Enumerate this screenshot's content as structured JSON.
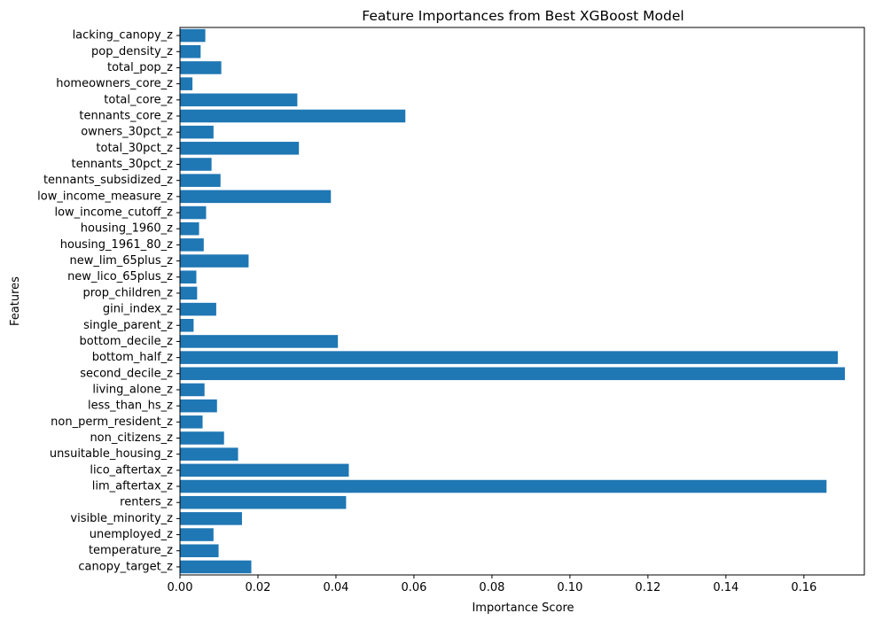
{
  "chart_data": {
    "type": "bar",
    "orientation": "horizontal",
    "title": "Feature Importances from Best XGBoost Model",
    "xlabel": "Importance Score",
    "ylabel": "Features",
    "xlim": [
      0,
      0.1755
    ],
    "xticks": [
      0.0,
      0.02,
      0.04,
      0.06,
      0.08,
      0.1,
      0.12,
      0.14,
      0.16
    ],
    "xtick_labels": [
      "0.00",
      "0.02",
      "0.04",
      "0.06",
      "0.08",
      "0.10",
      "0.12",
      "0.14",
      "0.16"
    ],
    "grid": false,
    "bar_color": "#1f77b4",
    "categories": [
      "lacking_canopy_z",
      "pop_density_z",
      "total_pop_z",
      "homeowners_core_z",
      "total_core_z",
      "tennants_core_z",
      "owners_30pct_z",
      "total_30pct_z",
      "tennants_30pct_z",
      "tennants_subsidized_z",
      "low_income_measure_z",
      "low_income_cutoff_z",
      "housing_1960_z",
      "housing_1961_80_z",
      "new_lim_65plus_z",
      "new_lico_65plus_z",
      "prop_children_z",
      "gini_index_z",
      "single_parent_z",
      "bottom_decile_z",
      "bottom_half_z",
      "second_decile_z",
      "living_alone_z",
      "less_than_hs_z",
      "non_perm_resident_z",
      "non_citizens_z",
      "unsuitable_housing_z",
      "lico_aftertax_z",
      "lim_aftertax_z",
      "renters_z",
      "visible_minority_z",
      "unemployed_z",
      "temperature_z",
      "canopy_target_z"
    ],
    "values": [
      0.0065,
      0.0053,
      0.0106,
      0.0032,
      0.0301,
      0.0578,
      0.0086,
      0.0305,
      0.0081,
      0.0104,
      0.0387,
      0.0067,
      0.0049,
      0.0061,
      0.0176,
      0.0042,
      0.0044,
      0.0093,
      0.0035,
      0.0405,
      0.1687,
      0.1705,
      0.0063,
      0.0095,
      0.0058,
      0.0113,
      0.0149,
      0.0433,
      0.1658,
      0.0426,
      0.0159,
      0.0086,
      0.0099,
      0.0183
    ]
  }
}
